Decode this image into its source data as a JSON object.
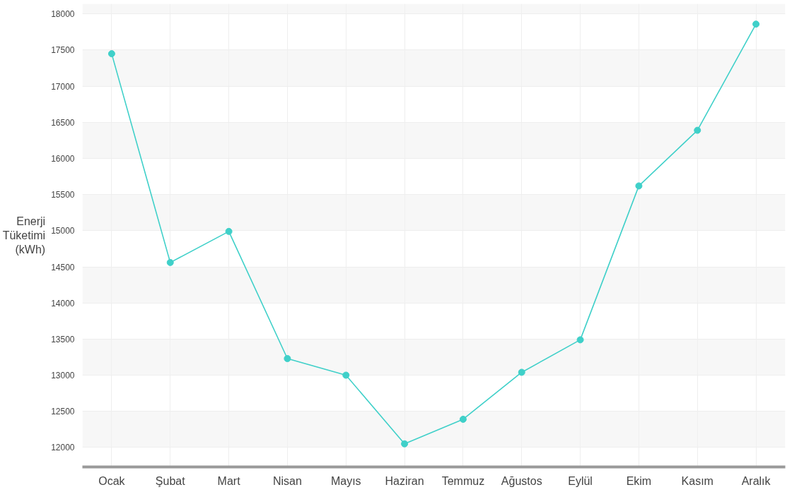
{
  "chart_data": {
    "type": "line",
    "ylabel": "Enerji\nTüketimi\n(kWh)",
    "categories": [
      "Ocak",
      "Şubat",
      "Mart",
      "Nisan",
      "Mayıs",
      "Haziran",
      "Temmuz",
      "Ağustos",
      "Eylül",
      "Ekim",
      "Kasım",
      "Aralık"
    ],
    "series": [
      {
        "color": "#3fd0c9",
        "values": [
          17450,
          14560,
          14990,
          13230,
          13000,
          12050,
          12390,
          13040,
          13490,
          15620,
          16390,
          17860
        ]
      }
    ],
    "ylim": [
      11730,
      18140
    ],
    "yticks": [
      12000,
      12500,
      13000,
      13500,
      14000,
      14500,
      15000,
      15500,
      16000,
      16500,
      17000,
      17500,
      18000
    ],
    "grid": true,
    "marker": "circle",
    "line_style": "solid"
  }
}
